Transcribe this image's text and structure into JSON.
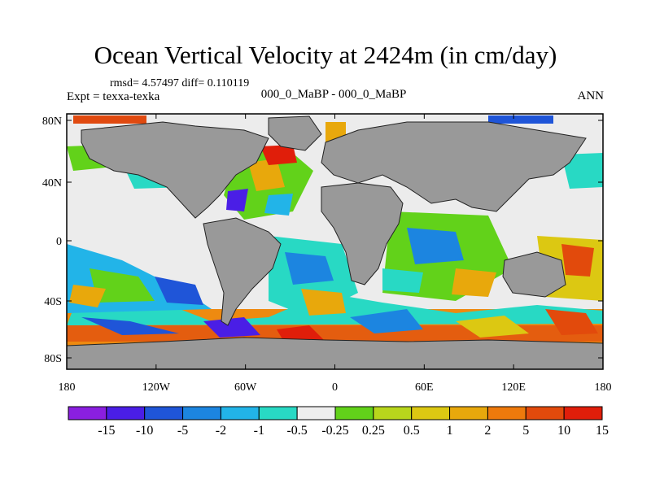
{
  "title": "Ocean Vertical Velocity at 2424m (in cm/day)",
  "stats": "rmsd= 4.57497  diff= 0.110119",
  "expt": "Expt = texxa-texka",
  "subtitle": "000_0_MaBP - 000_0_MaBP",
  "season": "ANN",
  "colors": {
    "land": "#999999",
    "ocean_missing": "#e8e8e8"
  },
  "lat_ticks": [
    "80N",
    "40N",
    "0",
    "40S",
    "80S"
  ],
  "lon_ticks": [
    "180",
    "120W",
    "60W",
    "0",
    "60E",
    "120E",
    "180"
  ],
  "colorbar": {
    "colors": [
      "#8a1fe0",
      "#4a1ee6",
      "#1f55d8",
      "#1c85e0",
      "#22b4e8",
      "#28d9c4",
      "#eeeeee",
      "#62d21a",
      "#b8d61c",
      "#dcc812",
      "#e8a80c",
      "#ee7a0c",
      "#e24a0c",
      "#e01e0a"
    ],
    "labels": [
      "-15",
      "-10",
      "-5",
      "-2",
      "-1",
      "-0.5",
      "-0.25",
      "0.25",
      "0.5",
      "1",
      "2",
      "5",
      "10",
      "15"
    ]
  }
}
